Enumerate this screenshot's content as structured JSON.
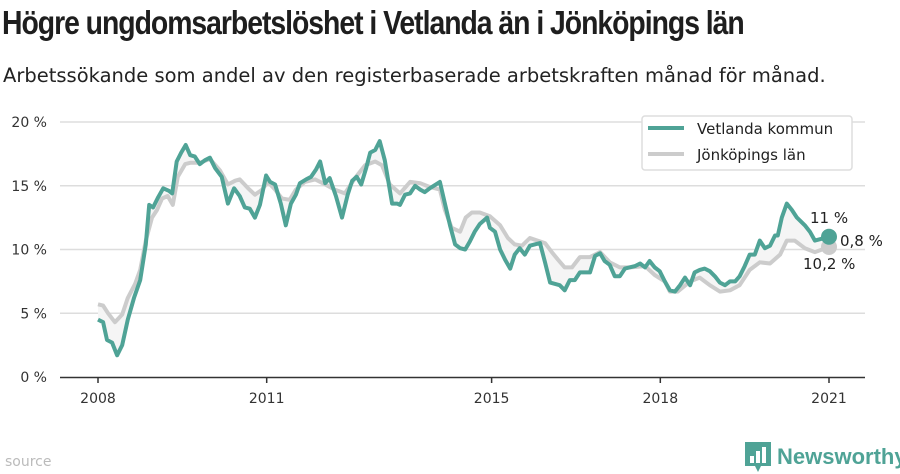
{
  "title": "Högre ungdomsarbetslöshet i Vetlanda än i Jönköpings län",
  "subtitle": "Arbetssökande som andel av den registerbaserade arbetskraften månad för månad.",
  "source_label": "source",
  "brand": "Newsworthy",
  "colors": {
    "vetlanda": "#4fa396",
    "lan": "#cccccc",
    "fill": "#f5f5f5",
    "grid": "#dddddd"
  },
  "chart_data": {
    "type": "line",
    "xlim": [
      2007.6,
      2021.6
    ],
    "ylim": [
      0,
      20
    ],
    "yticks": [
      0,
      5,
      10,
      15,
      20
    ],
    "ytick_labels": [
      "0 %",
      "5 %",
      "10 %",
      "15 %",
      "20 %"
    ],
    "xticks": [
      2008,
      2011,
      2015,
      2018,
      2021
    ],
    "xtick_labels": [
      "2008",
      "2011",
      "2015",
      "2018",
      "2021"
    ],
    "grid": true,
    "legend_position": "top-right",
    "annotations": {
      "vetlanda_last": "11 %",
      "difference": "0,8 %",
      "lan_last": "10,2 %"
    },
    "series": [
      {
        "name": "Vetlanda kommun",
        "points": [
          [
            2008.0,
            4.5
          ],
          [
            2008.09,
            4.3
          ],
          [
            2008.16,
            2.9
          ],
          [
            2008.25,
            2.7
          ],
          [
            2008.34,
            1.7
          ],
          [
            2008.43,
            2.5
          ],
          [
            2008.53,
            4.5
          ],
          [
            2008.64,
            6.2
          ],
          [
            2008.75,
            7.6
          ],
          [
            2008.85,
            10.4
          ],
          [
            2008.91,
            13.5
          ],
          [
            2008.98,
            13.3
          ],
          [
            2009.07,
            14.1
          ],
          [
            2009.16,
            14.8
          ],
          [
            2009.26,
            14.6
          ],
          [
            2009.32,
            14.4
          ],
          [
            2009.4,
            16.9
          ],
          [
            2009.48,
            17.6
          ],
          [
            2009.56,
            18.2
          ],
          [
            2009.64,
            17.4
          ],
          [
            2009.72,
            17.3
          ],
          [
            2009.81,
            16.7
          ],
          [
            2009.9,
            17.0
          ],
          [
            2009.99,
            17.2
          ],
          [
            2010.08,
            16.4
          ],
          [
            2010.2,
            15.7
          ],
          [
            2010.31,
            13.6
          ],
          [
            2010.42,
            14.8
          ],
          [
            2010.52,
            14.2
          ],
          [
            2010.61,
            13.3
          ],
          [
            2010.7,
            13.2
          ],
          [
            2010.79,
            12.5
          ],
          [
            2010.88,
            13.5
          ],
          [
            2010.99,
            15.8
          ],
          [
            2011.06,
            15.3
          ],
          [
            2011.15,
            15.1
          ],
          [
            2011.25,
            13.6
          ],
          [
            2011.34,
            11.9
          ],
          [
            2011.43,
            13.6
          ],
          [
            2011.52,
            14.3
          ],
          [
            2011.59,
            15.2
          ],
          [
            2011.7,
            15.5
          ],
          [
            2011.79,
            15.7
          ],
          [
            2011.88,
            16.3
          ],
          [
            2011.95,
            16.9
          ],
          [
            2012.04,
            15.2
          ],
          [
            2012.12,
            15.6
          ],
          [
            2012.23,
            14.2
          ],
          [
            2012.34,
            12.5
          ],
          [
            2012.44,
            14.3
          ],
          [
            2012.52,
            15.4
          ],
          [
            2012.6,
            15.7
          ],
          [
            2012.68,
            15.1
          ],
          [
            2012.77,
            16.4
          ],
          [
            2012.84,
            17.6
          ],
          [
            2012.93,
            17.8
          ],
          [
            2013.01,
            18.5
          ],
          [
            2013.1,
            17.0
          ],
          [
            2013.23,
            13.6
          ],
          [
            2013.32,
            13.6
          ],
          [
            2013.37,
            13.5
          ],
          [
            2013.46,
            14.3
          ],
          [
            2013.55,
            14.4
          ],
          [
            2013.64,
            15.0
          ],
          [
            2013.73,
            14.7
          ],
          [
            2013.81,
            14.5
          ],
          [
            2013.9,
            14.8
          ],
          [
            2014.08,
            15.3
          ],
          [
            2014.17,
            13.6
          ],
          [
            2014.26,
            11.9
          ],
          [
            2014.35,
            10.4
          ],
          [
            2014.44,
            10.1
          ],
          [
            2014.53,
            10.0
          ],
          [
            2014.61,
            10.6
          ],
          [
            2014.7,
            11.4
          ],
          [
            2014.79,
            12.0
          ],
          [
            2014.92,
            12.5
          ],
          [
            2014.97,
            11.7
          ],
          [
            2015.06,
            11.4
          ],
          [
            2015.15,
            10.0
          ],
          [
            2015.24,
            9.2
          ],
          [
            2015.33,
            8.5
          ],
          [
            2015.41,
            9.6
          ],
          [
            2015.5,
            10.1
          ],
          [
            2015.59,
            9.6
          ],
          [
            2015.68,
            10.3
          ],
          [
            2015.86,
            10.5
          ],
          [
            2015.95,
            9.0
          ],
          [
            2016.04,
            7.4
          ],
          [
            2016.21,
            7.2
          ],
          [
            2016.3,
            6.8
          ],
          [
            2016.39,
            7.6
          ],
          [
            2016.48,
            7.6
          ],
          [
            2016.57,
            8.2
          ],
          [
            2016.75,
            8.2
          ],
          [
            2016.84,
            9.5
          ],
          [
            2016.93,
            9.7
          ],
          [
            2017.01,
            9.1
          ],
          [
            2017.1,
            8.8
          ],
          [
            2017.19,
            7.9
          ],
          [
            2017.28,
            7.9
          ],
          [
            2017.37,
            8.5
          ],
          [
            2017.55,
            8.7
          ],
          [
            2017.64,
            8.9
          ],
          [
            2017.73,
            8.6
          ],
          [
            2017.81,
            9.1
          ],
          [
            2017.9,
            8.6
          ],
          [
            2017.99,
            8.3
          ],
          [
            2018.08,
            7.5
          ],
          [
            2018.17,
            6.8
          ],
          [
            2018.26,
            6.7
          ],
          [
            2018.35,
            7.2
          ],
          [
            2018.44,
            7.8
          ],
          [
            2018.53,
            7.2
          ],
          [
            2018.61,
            8.2
          ],
          [
            2018.7,
            8.4
          ],
          [
            2018.79,
            8.5
          ],
          [
            2018.88,
            8.3
          ],
          [
            2018.97,
            7.9
          ],
          [
            2019.06,
            7.4
          ],
          [
            2019.15,
            7.2
          ],
          [
            2019.24,
            7.5
          ],
          [
            2019.33,
            7.5
          ],
          [
            2019.41,
            7.9
          ],
          [
            2019.5,
            8.7
          ],
          [
            2019.59,
            9.6
          ],
          [
            2019.68,
            9.6
          ],
          [
            2019.77,
            10.7
          ],
          [
            2019.86,
            10.1
          ],
          [
            2019.95,
            10.3
          ],
          [
            2020.04,
            11.1
          ],
          [
            2020.09,
            11.1
          ],
          [
            2020.16,
            12.5
          ],
          [
            2020.25,
            13.6
          ],
          [
            2020.34,
            13.1
          ],
          [
            2020.43,
            12.5
          ],
          [
            2020.57,
            11.9
          ],
          [
            2020.66,
            11.4
          ],
          [
            2020.75,
            10.7
          ],
          [
            2021.0,
            11.0
          ]
        ]
      },
      {
        "name": "Jönköpings län",
        "points": [
          [
            2008.0,
            5.7
          ],
          [
            2008.09,
            5.6
          ],
          [
            2008.18,
            5.0
          ],
          [
            2008.3,
            4.3
          ],
          [
            2008.43,
            4.9
          ],
          [
            2008.53,
            6.2
          ],
          [
            2008.66,
            7.3
          ],
          [
            2008.75,
            8.4
          ],
          [
            2008.85,
            10.7
          ],
          [
            2008.96,
            12.5
          ],
          [
            2009.05,
            13.1
          ],
          [
            2009.14,
            14.0
          ],
          [
            2009.24,
            14.2
          ],
          [
            2009.33,
            13.5
          ],
          [
            2009.42,
            15.7
          ],
          [
            2009.55,
            16.7
          ],
          [
            2009.64,
            16.8
          ],
          [
            2009.81,
            16.8
          ],
          [
            2009.99,
            17.1
          ],
          [
            2010.17,
            16.2
          ],
          [
            2010.31,
            15.1
          ],
          [
            2010.44,
            15.4
          ],
          [
            2010.52,
            15.5
          ],
          [
            2010.67,
            14.8
          ],
          [
            2010.79,
            14.3
          ],
          [
            2010.92,
            14.7
          ],
          [
            2011.02,
            15.3
          ],
          [
            2011.15,
            14.7
          ],
          [
            2011.27,
            14.0
          ],
          [
            2011.41,
            13.9
          ],
          [
            2011.52,
            14.7
          ],
          [
            2011.68,
            15.3
          ],
          [
            2011.86,
            15.5
          ],
          [
            2012.04,
            15.1
          ],
          [
            2012.21,
            14.7
          ],
          [
            2012.39,
            14.4
          ],
          [
            2012.57,
            15.6
          ],
          [
            2012.75,
            16.6
          ],
          [
            2012.93,
            16.9
          ],
          [
            2013.05,
            16.6
          ],
          [
            2013.19,
            15.1
          ],
          [
            2013.37,
            14.4
          ],
          [
            2013.55,
            15.3
          ],
          [
            2013.73,
            15.2
          ],
          [
            2013.9,
            14.9
          ],
          [
            2014.08,
            14.7
          ],
          [
            2014.17,
            13.1
          ],
          [
            2014.29,
            11.7
          ],
          [
            2014.44,
            11.4
          ],
          [
            2014.54,
            12.5
          ],
          [
            2014.65,
            12.9
          ],
          [
            2014.79,
            12.9
          ],
          [
            2014.97,
            12.6
          ],
          [
            2015.15,
            11.9
          ],
          [
            2015.29,
            10.9
          ],
          [
            2015.41,
            10.4
          ],
          [
            2015.54,
            10.3
          ],
          [
            2015.68,
            10.9
          ],
          [
            2015.95,
            10.5
          ],
          [
            2016.07,
            9.8
          ],
          [
            2016.18,
            9.2
          ],
          [
            2016.3,
            8.6
          ],
          [
            2016.43,
            8.6
          ],
          [
            2016.57,
            9.4
          ],
          [
            2016.75,
            9.4
          ],
          [
            2016.93,
            9.8
          ],
          [
            2017.1,
            9.0
          ],
          [
            2017.28,
            8.6
          ],
          [
            2017.46,
            8.6
          ],
          [
            2017.73,
            8.7
          ],
          [
            2017.9,
            8.0
          ],
          [
            2018.08,
            7.5
          ],
          [
            2018.17,
            6.7
          ],
          [
            2018.31,
            6.7
          ],
          [
            2018.53,
            7.5
          ],
          [
            2018.7,
            7.8
          ],
          [
            2018.88,
            7.2
          ],
          [
            2019.06,
            6.7
          ],
          [
            2019.24,
            6.8
          ],
          [
            2019.41,
            7.2
          ],
          [
            2019.59,
            8.4
          ],
          [
            2019.77,
            9.0
          ],
          [
            2019.95,
            8.9
          ],
          [
            2020.13,
            9.6
          ],
          [
            2020.25,
            10.7
          ],
          [
            2020.39,
            10.7
          ],
          [
            2020.57,
            10.1
          ],
          [
            2020.75,
            9.8
          ],
          [
            2021.0,
            10.2
          ]
        ]
      }
    ]
  }
}
